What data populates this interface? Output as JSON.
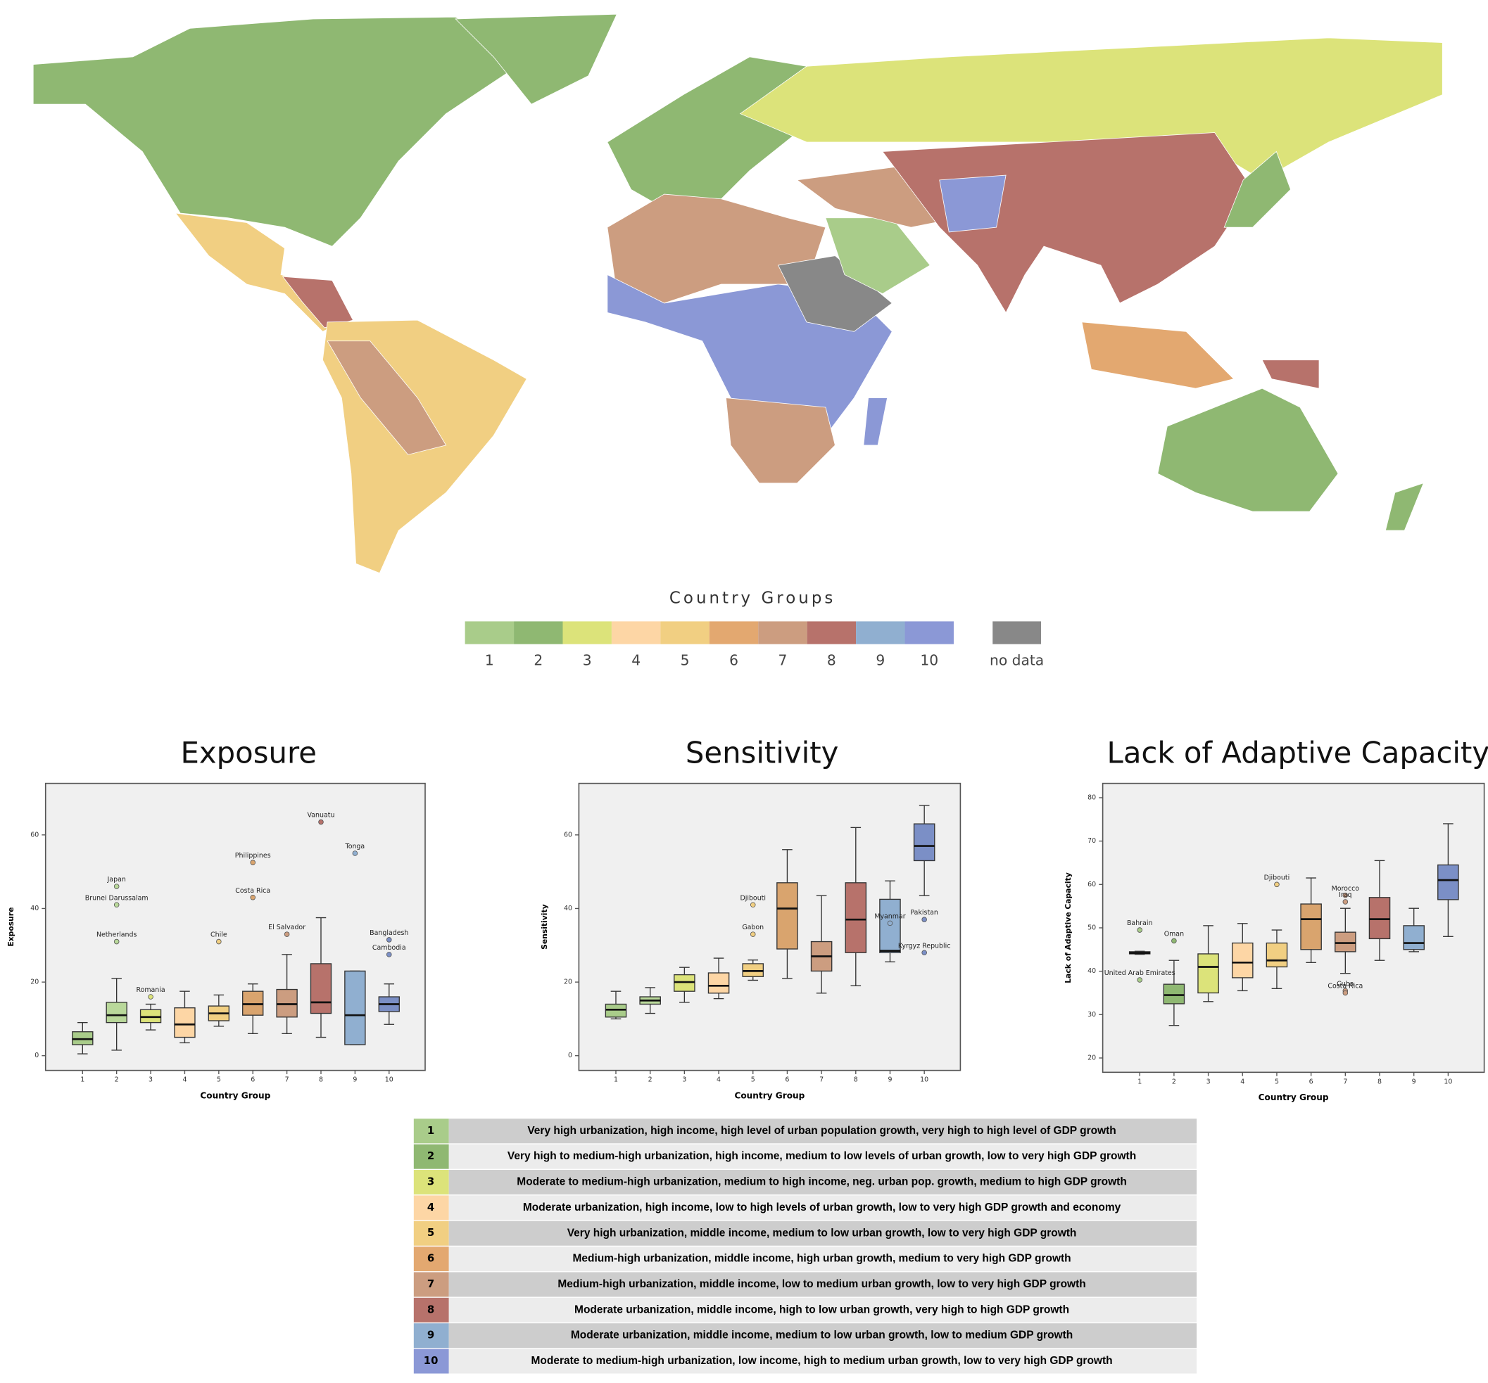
{
  "map": {
    "legend_title": "Country Groups",
    "legend": [
      {
        "label": "1",
        "color": "#a9cc8a"
      },
      {
        "label": "2",
        "color": "#8fb872"
      },
      {
        "label": "3",
        "color": "#dce37a"
      },
      {
        "label": "4",
        "color": "#fdd6a5"
      },
      {
        "label": "5",
        "color": "#f1cf82"
      },
      {
        "label": "6",
        "color": "#e3a870"
      },
      {
        "label": "7",
        "color": "#cc9d80"
      },
      {
        "label": "8",
        "color": "#b7726b"
      },
      {
        "label": "9",
        "color": "#90afd0"
      },
      {
        "label": "10",
        "color": "#8b98d6"
      },
      {
        "label": "no data",
        "color": "#888888"
      }
    ]
  },
  "chart_data": [
    {
      "type": "box",
      "title": "Exposure",
      "x_label": "Country Group",
      "y_label": "Exposure",
      "categories": [
        "1",
        "2",
        "3",
        "4",
        "5",
        "6",
        "7",
        "8",
        "9",
        "10"
      ],
      "colors": [
        "#a9cc8a",
        "#b9d89a",
        "#dce37a",
        "#fdd6a5",
        "#f1cf82",
        "#d9a46e",
        "#cc9d80",
        "#b7726b",
        "#90afd0",
        "#7b8fc6"
      ],
      "ylim": [
        -4,
        74
      ],
      "yticks": [
        0,
        20,
        40,
        60
      ],
      "boxes": [
        {
          "whislo": 0.5,
          "q1": 3,
          "med": 4.5,
          "q3": 6.5,
          "whishi": 9,
          "outliers": []
        },
        {
          "whislo": 1.5,
          "q1": 9,
          "med": 11,
          "q3": 14.5,
          "whishi": 21,
          "outliers": [
            {
              "value": 31,
              "label": "Netherlands"
            },
            {
              "value": 46,
              "label": "Japan"
            },
            {
              "value": 41,
              "label": "Brunei Darussalam"
            }
          ]
        },
        {
          "whislo": 7,
          "q1": 9,
          "med": 10.5,
          "q3": 12.5,
          "whishi": 14,
          "outliers": [
            {
              "value": 16,
              "label": "Romania"
            }
          ]
        },
        {
          "whislo": 3.5,
          "q1": 5,
          "med": 8.5,
          "q3": 13,
          "whishi": 17.5,
          "outliers": []
        },
        {
          "whislo": 8,
          "q1": 9.5,
          "med": 11.5,
          "q3": 13.5,
          "whishi": 16.5,
          "outliers": [
            {
              "value": 31,
              "label": "Chile"
            }
          ]
        },
        {
          "whislo": 6,
          "q1": 11,
          "med": 14,
          "q3": 17.5,
          "whishi": 19.5,
          "outliers": [
            {
              "value": 52.5,
              "label": "Philippines"
            },
            {
              "value": 43,
              "label": "Costa Rica"
            }
          ]
        },
        {
          "whislo": 6,
          "q1": 10.5,
          "med": 14,
          "q3": 18,
          "whishi": 27.5,
          "outliers": [
            {
              "value": 33,
              "label": "El Salvador"
            }
          ]
        },
        {
          "whislo": 5,
          "q1": 11.5,
          "med": 14.5,
          "q3": 25,
          "whishi": 37.5,
          "outliers": [
            {
              "value": 63.5,
              "label": "Vanuatu"
            }
          ]
        },
        {
          "whislo": 3,
          "q1": 3,
          "med": 11,
          "q3": 23,
          "whishi": 23,
          "outliers": [
            {
              "value": 55,
              "label": "Tonga"
            }
          ]
        },
        {
          "whislo": 8.5,
          "q1": 12,
          "med": 14,
          "q3": 16,
          "whishi": 19.5,
          "outliers": [
            {
              "value": 31.5,
              "label": "Bangladesh"
            },
            {
              "value": 27.5,
              "label": "Cambodia"
            }
          ]
        }
      ]
    },
    {
      "type": "box",
      "title": "Sensitivity",
      "x_label": "Country Group",
      "y_label": "Sensitivity",
      "categories": [
        "1",
        "2",
        "3",
        "4",
        "5",
        "6",
        "7",
        "8",
        "9",
        "10"
      ],
      "colors": [
        "#a9cc8a",
        "#b9d89a",
        "#dce37a",
        "#fdd6a5",
        "#f1cf82",
        "#d9a46e",
        "#cc9d80",
        "#b7726b",
        "#90afd0",
        "#7b8fc6"
      ],
      "ylim": [
        -4,
        74
      ],
      "yticks": [
        0,
        20,
        40,
        60
      ],
      "boxes": [
        {
          "whislo": 10,
          "q1": 10.5,
          "med": 12.5,
          "q3": 14,
          "whishi": 17.5,
          "outliers": []
        },
        {
          "whislo": 11.5,
          "q1": 14,
          "med": 15,
          "q3": 16,
          "whishi": 18.5,
          "outliers": []
        },
        {
          "whislo": 14.5,
          "q1": 17.5,
          "med": 20,
          "q3": 22,
          "whishi": 24,
          "outliers": []
        },
        {
          "whislo": 15.5,
          "q1": 17,
          "med": 19,
          "q3": 22.5,
          "whishi": 26.5,
          "outliers": []
        },
        {
          "whislo": 20.5,
          "q1": 21.5,
          "med": 23,
          "q3": 25,
          "whishi": 26,
          "outliers": [
            {
              "value": 41,
              "label": "Djibouti"
            },
            {
              "value": 33,
              "label": "Gabon"
            }
          ]
        },
        {
          "whislo": 21,
          "q1": 29,
          "med": 40,
          "q3": 47,
          "whishi": 56,
          "outliers": []
        },
        {
          "whislo": 17,
          "q1": 23,
          "med": 27,
          "q3": 31,
          "whishi": 43.5,
          "outliers": []
        },
        {
          "whislo": 19,
          "q1": 28,
          "med": 37,
          "q3": 47,
          "whishi": 62,
          "outliers": []
        },
        {
          "whislo": 25.5,
          "q1": 28,
          "med": 28.5,
          "q3": 42.5,
          "whishi": 47.5,
          "outliers": [
            {
              "value": 36,
              "label": "Myanmar"
            }
          ]
        },
        {
          "whislo": 43.5,
          "q1": 53,
          "med": 57,
          "q3": 63,
          "whishi": 68,
          "outliers": [
            {
              "value": 37,
              "label": "Pakistan"
            },
            {
              "value": 28,
              "label": "Kyrgyz Republic"
            }
          ]
        }
      ]
    },
    {
      "type": "box",
      "title": "Lack of Adaptive Capacity",
      "x_label": "Country Group",
      "y_label": "Lack of Adaptive Capacity",
      "categories": [
        "1",
        "2",
        "3",
        "4",
        "5",
        "6",
        "7",
        "8",
        "9",
        "10"
      ],
      "colors": [
        "#a9cc8a",
        "#8fb872",
        "#dce37a",
        "#fdd6a5",
        "#f1cf82",
        "#d9a46e",
        "#cc9d80",
        "#b7726b",
        "#90afd0",
        "#7b8fc6"
      ],
      "ylim": [
        16.7,
        83.3
      ],
      "yticks": [
        20,
        30,
        40,
        50,
        60,
        70,
        80
      ],
      "boxes": [
        {
          "whislo": 43.9,
          "q1": 44,
          "med": 44.2,
          "q3": 44.5,
          "whishi": 44.6,
          "outliers": [
            {
              "value": 49.5,
              "label": "Bahrain"
            },
            {
              "value": 38,
              "label": "United Arab Emirates"
            }
          ]
        },
        {
          "whislo": 27.5,
          "q1": 32.5,
          "med": 34.5,
          "q3": 37,
          "whishi": 42.5,
          "outliers": [
            {
              "value": 47,
              "label": "Oman"
            }
          ]
        },
        {
          "whislo": 33,
          "q1": 35,
          "med": 41,
          "q3": 44,
          "whishi": 50.5,
          "outliers": []
        },
        {
          "whislo": 35.5,
          "q1": 38.5,
          "med": 42,
          "q3": 46.5,
          "whishi": 51,
          "outliers": []
        },
        {
          "whislo": 36,
          "q1": 41,
          "med": 42.5,
          "q3": 46.5,
          "whishi": 49.5,
          "outliers": [
            {
              "value": 60,
              "label": "Djibouti"
            }
          ]
        },
        {
          "whislo": 42,
          "q1": 45,
          "med": 52,
          "q3": 55.5,
          "whishi": 61.5,
          "outliers": []
        },
        {
          "whislo": 39.5,
          "q1": 44.5,
          "med": 46.5,
          "q3": 49,
          "whishi": 54.5,
          "outliers": [
            {
              "value": 57.5,
              "label": "Morocco"
            },
            {
              "value": 56,
              "label": "Iraq"
            },
            {
              "value": 35.5,
              "label": "Cuba"
            },
            {
              "value": 35,
              "label": "Costa Rica"
            }
          ]
        },
        {
          "whislo": 42.5,
          "q1": 47.5,
          "med": 52,
          "q3": 57,
          "whishi": 65.5,
          "outliers": []
        },
        {
          "whislo": 44.5,
          "q1": 45,
          "med": 46.5,
          "q3": 50.5,
          "whishi": 54.5,
          "outliers": []
        },
        {
          "whislo": 48,
          "q1": 56.5,
          "med": 61,
          "q3": 64.5,
          "whishi": 74,
          "outliers": []
        }
      ]
    }
  ],
  "table": {
    "rows": [
      [
        "1",
        "Very high urbanization, high income, high level of urban population growth, very high to high level of GDP growth"
      ],
      [
        "2",
        "Very high to medium-high urbanization, high income, medium to low levels of urban growth, low to very high GDP growth"
      ],
      [
        "3",
        "Moderate to medium-high urbanization, medium to high income, neg. urban pop. growth, medium to high GDP growth"
      ],
      [
        "4",
        "Moderate urbanization, high income, low to high levels of urban growth, low to very high GDP growth and economy"
      ],
      [
        "5",
        "Very high urbanization, middle income, medium to low urban growth, low to very high GDP growth"
      ],
      [
        "6",
        "Medium-high urbanization, middle income, high urban growth, medium to very high GDP growth"
      ],
      [
        "7",
        "Medium-high urbanization, middle income, low to medium urban growth, low to very high GDP growth"
      ],
      [
        "8",
        "Moderate urbanization, middle income, high to low urban growth, very high to high GDP growth"
      ],
      [
        "9",
        "Moderate urbanization, middle income, medium to low urban growth, low to medium GDP growth"
      ],
      [
        "10",
        "Moderate to medium-high urbanization, low income, high to medium urban growth, low to very high GDP growth"
      ]
    ]
  }
}
